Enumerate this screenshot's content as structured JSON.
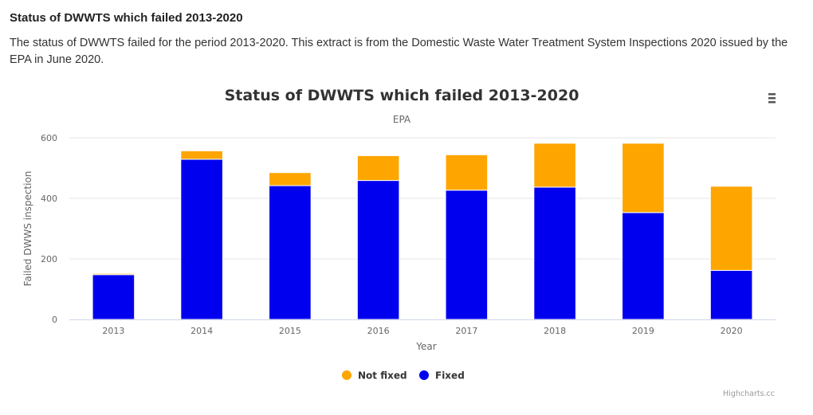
{
  "page": {
    "heading": "Status of DWWTS which failed 2013-2020",
    "description": "The status of DWWTS failed for the period 2013-2020. This extract is from the Domestic Waste Water Treatment System Inspections 2020 issued by the EPA in June 2020."
  },
  "menu_icon": "hamburger-menu-icon",
  "credits": "Highcharts.cc",
  "chart_data": {
    "type": "bar",
    "stacked": true,
    "title": "Status of DWWTS which failed 2013-2020",
    "subtitle": "EPA",
    "xlabel": "Year",
    "ylabel": "Failed DWWS inspection",
    "categories": [
      "2013",
      "2014",
      "2015",
      "2016",
      "2017",
      "2018",
      "2019",
      "2020"
    ],
    "ylim": [
      0,
      600
    ],
    "yticks": [
      0,
      200,
      400,
      600
    ],
    "grid": true,
    "legend_position": "bottom-center",
    "series": [
      {
        "name": "Not fixed",
        "color": "#ffa500",
        "values": [
          4,
          28,
          43,
          82,
          117,
          145,
          229,
          278
        ]
      },
      {
        "name": "Fixed",
        "color": "#0000ee",
        "values": [
          148,
          529,
          442,
          459,
          427,
          437,
          353,
          162
        ]
      }
    ]
  }
}
